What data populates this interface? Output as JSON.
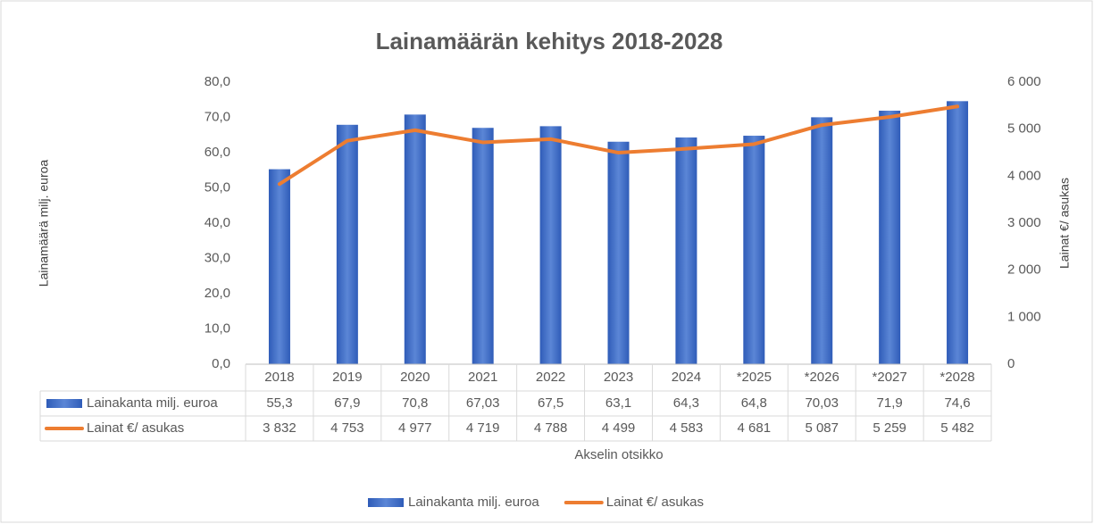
{
  "chart_data": {
    "type": "bar",
    "title": "Lainamäärän kehitys 2018-2028",
    "y_label": "Lainamäärä milj. euroa",
    "y2_label": "Lainat €/ asukas",
    "x_label": "Akselin otsikko",
    "categories": [
      "2018",
      "2019",
      "2020",
      "2021",
      "2022",
      "2023",
      "2024",
      "*2025",
      "*2026",
      "*2027",
      "*2028"
    ],
    "series": [
      {
        "name": "Lainakanta milj. euroa",
        "type": "bar",
        "color": "#4472c4",
        "values": [
          55.3,
          67.9,
          70.8,
          67.03,
          67.5,
          63.1,
          64.3,
          64.8,
          70.03,
          71.9,
          74.6
        ],
        "value_labels": [
          "55,3",
          "67,9",
          "70,8",
          "67,03",
          "67,5",
          "63,1",
          "64,3",
          "64,8",
          "70,03",
          "71,9",
          "74,6"
        ]
      },
      {
        "name": "Lainat €/ asukas",
        "type": "line",
        "axis": "y2",
        "color": "#ed7d31",
        "values": [
          3832,
          4753,
          4977,
          4719,
          4788,
          4499,
          4583,
          4681,
          5087,
          5259,
          5482
        ],
        "value_labels": [
          "3 832",
          "4 753",
          "4 977",
          "4 719",
          "4 788",
          "4 499",
          "4 583",
          "4 681",
          "5 087",
          "5 259",
          "5 482"
        ]
      }
    ],
    "ylim": [
      0,
      80
    ],
    "yticks": [
      {
        "value": 0,
        "label": "0,0"
      },
      {
        "value": 10,
        "label": "10,0"
      },
      {
        "value": 20,
        "label": "20,0"
      },
      {
        "value": 30,
        "label": "30,0"
      },
      {
        "value": 40,
        "label": "40,0"
      },
      {
        "value": 50,
        "label": "50,0"
      },
      {
        "value": 60,
        "label": "60,0"
      },
      {
        "value": 70,
        "label": "70,0"
      },
      {
        "value": 80,
        "label": "80,0"
      }
    ],
    "y2lim": [
      0,
      6000
    ],
    "y2ticks": [
      0,
      {
        "value": 1000,
        "label": "1 000"
      },
      {
        "value": 2000,
        "label": "2 000"
      },
      {
        "value": 3000,
        "label": "3 000"
      },
      {
        "value": 4000,
        "label": "4 000"
      },
      {
        "value": 5000,
        "label": "5 000"
      },
      {
        "value": 6000,
        "label": "6 000"
      }
    ],
    "grid": false,
    "legend": "bottom",
    "data_table": true
  }
}
